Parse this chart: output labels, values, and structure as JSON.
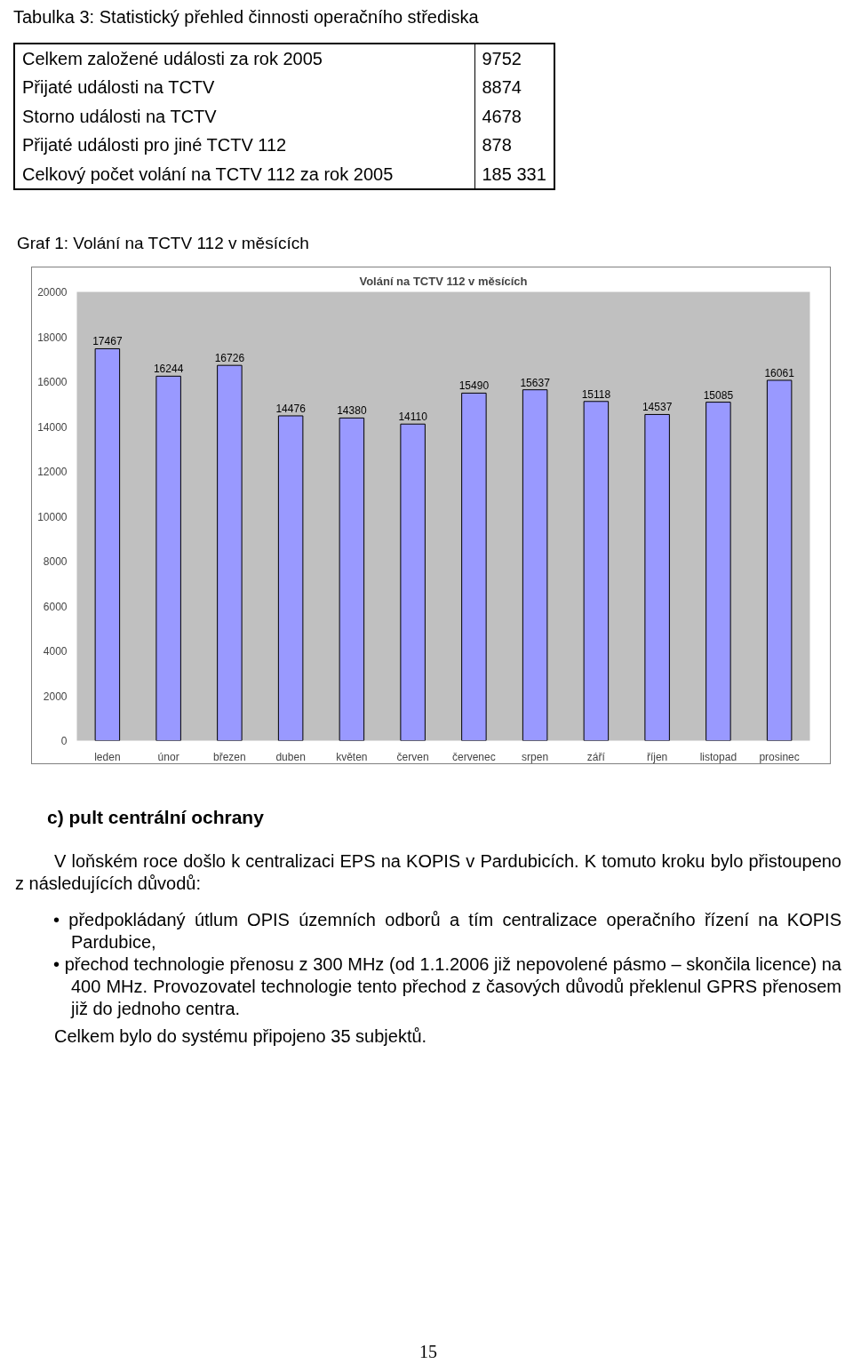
{
  "chart_data": [
    {
      "type": "other",
      "title": "Tabulka 3: Statistický přehled činnosti operačního střediska",
      "annotations": [
        "Celkem založené události za rok 2005",
        "9752",
        "Přijaté události na TCTV",
        "8874",
        "Storno události na TCTV",
        "4678",
        "Přijaté události pro jiné TCTV 112",
        "878",
        "Celkový počet volání na TCTV 112 za rok 2005",
        "185 331"
      ]
    },
    {
      "type": "bar",
      "title": "Volání na TCTV 112 v měsících",
      "annotations": [
        "Graf 1: Volání na TCTV 112 v měsících"
      ],
      "categories": [
        "leden",
        "únor",
        "březen",
        "duben",
        "květen",
        "červen",
        "červenec",
        "srpen",
        "září",
        "říjen",
        "listopad",
        "prosinec"
      ],
      "values": [
        17467,
        16244,
        16726,
        14476,
        14380,
        14110,
        15490,
        15637,
        15118,
        14537,
        15085,
        16061
      ],
      "color": "#9999ff",
      "ylim": [
        0,
        20000
      ],
      "yticks": [
        0,
        2000,
        4000,
        6000,
        8000,
        10000,
        12000,
        14000,
        16000,
        18000,
        20000
      ],
      "grid": false,
      "data_labels": true
    },
    {
      "type": "other",
      "title": "c) pult centrální ochrany",
      "annotations": [
        "V loňském roce došlo k centralizaci EPS na KOPIS v Pardubicích. K tomuto kroku bylo přistoupeno z následujících důvodů:",
        "• předpokládaný útlum OPIS územních odborů a tím centralizace operačního řízení na KOPIS Pardubice,",
        "• přechod technologie přenosu z 300 MHz (od 1.1.2006 již nepovolené pásmo – skončila licence) na 400 MHz. Provozovatel technologie tento přechod z časových důvodů překlenul GPRS přenosem již do jednoho centra.",
        "Celkem bylo do systému připojeno 35 subjektů.",
        "15"
      ]
    }
  ]
}
